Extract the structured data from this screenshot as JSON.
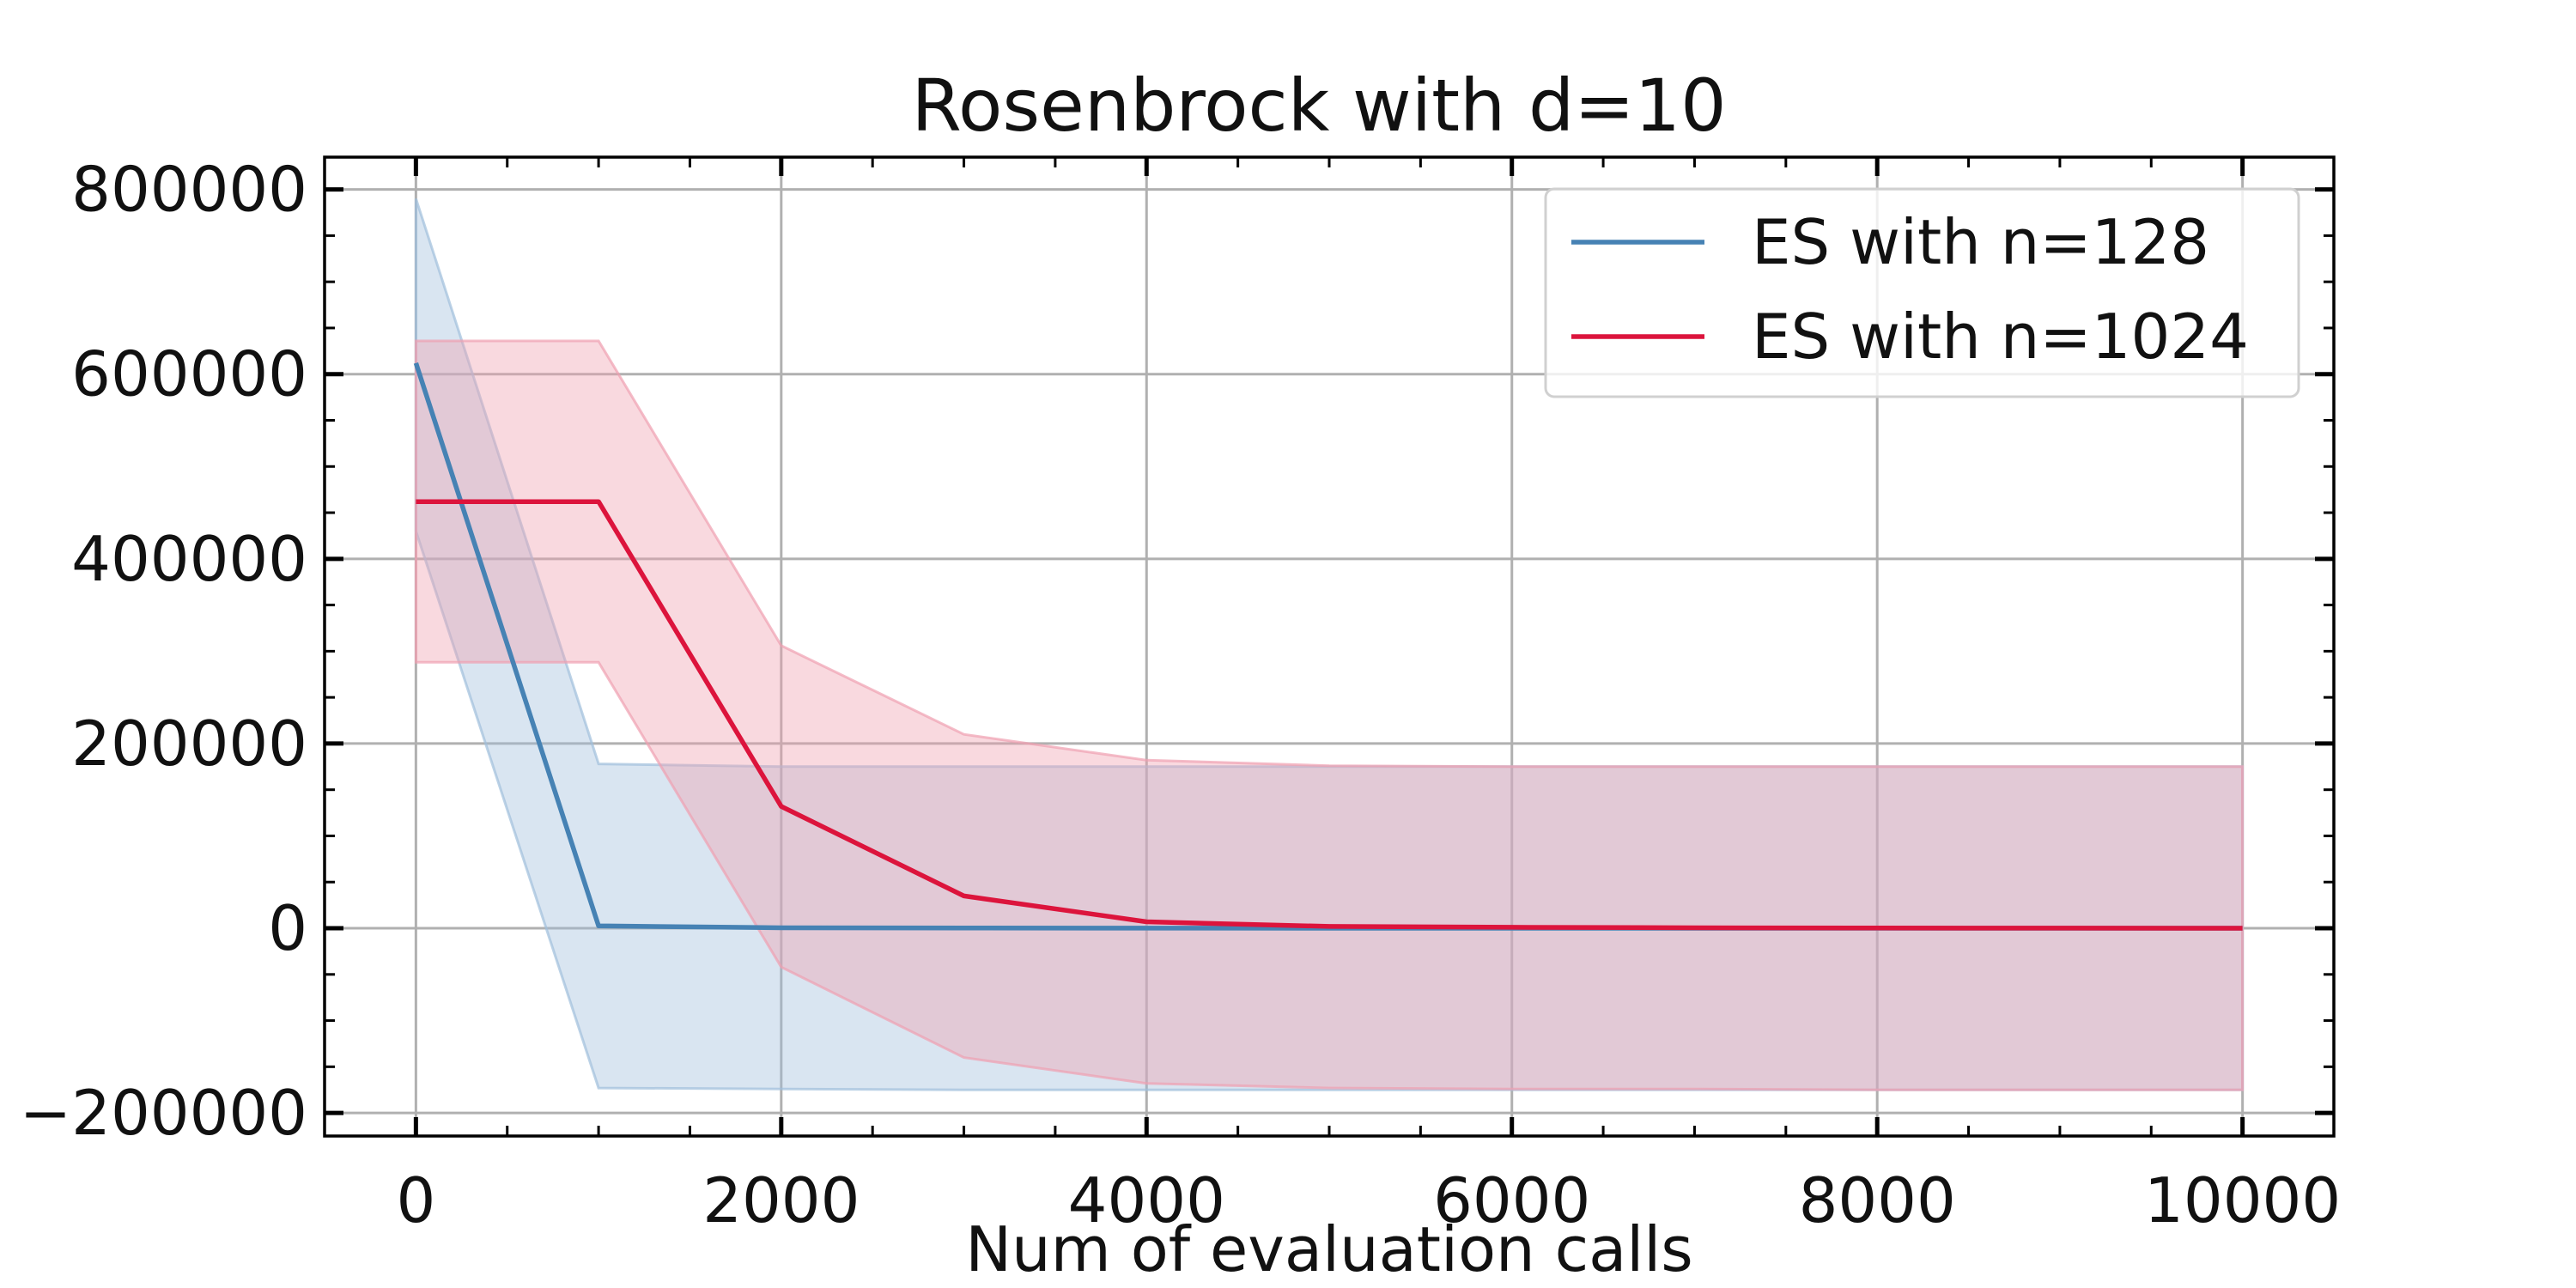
{
  "chart_data": {
    "type": "line",
    "title": "Rosenbrock with d=10",
    "xlabel": "Num of evaluation calls",
    "ylabel": "",
    "xlim": [
      -500,
      10500
    ],
    "ylim": [
      -225000,
      835000
    ],
    "x_ticks": [
      0,
      2000,
      4000,
      6000,
      8000,
      10000
    ],
    "x_tick_labels": [
      "0",
      "2000",
      "4000",
      "6000",
      "8000",
      "10000"
    ],
    "y_ticks": [
      -200000,
      0,
      200000,
      400000,
      600000,
      800000
    ],
    "y_tick_labels": [
      "−200000",
      "0",
      "200000",
      "400000",
      "600000",
      "800000"
    ],
    "grid": true,
    "legend_position": "top-right",
    "series": [
      {
        "name": "ES with n=128",
        "color": "#4682b4",
        "band_color": "#9fbfdb",
        "x": [
          0,
          1000,
          2000,
          3000,
          4000,
          5000,
          6000,
          7000,
          8000,
          9000,
          10000
        ],
        "values": [
          612000,
          2500,
          500,
          200,
          100,
          50,
          30,
          20,
          10,
          5,
          0
        ],
        "lower": [
          430000,
          -173000,
          -174000,
          -175000,
          -175000,
          -175000,
          -175000,
          -175000,
          -175000,
          -175000,
          -175000
        ],
        "upper": [
          790000,
          178000,
          175000,
          175000,
          175000,
          175000,
          175000,
          175000,
          175000,
          175000,
          175000
        ]
      },
      {
        "name": "ES with n=1024",
        "color": "#dc143c",
        "band_color": "#f0a0b0",
        "x": [
          0,
          1000,
          2000,
          3000,
          4000,
          5000,
          6000,
          7000,
          8000,
          9000,
          10000
        ],
        "values": [
          462000,
          462000,
          132000,
          35000,
          7000,
          2000,
          1000,
          500,
          200,
          100,
          0
        ],
        "lower": [
          288000,
          288000,
          -42000,
          -140000,
          -168000,
          -173000,
          -174000,
          -174000,
          -175000,
          -175000,
          -175000
        ],
        "upper": [
          636000,
          636000,
          306000,
          210000,
          182000,
          176000,
          175000,
          175000,
          175000,
          175000,
          175000
        ]
      }
    ]
  }
}
